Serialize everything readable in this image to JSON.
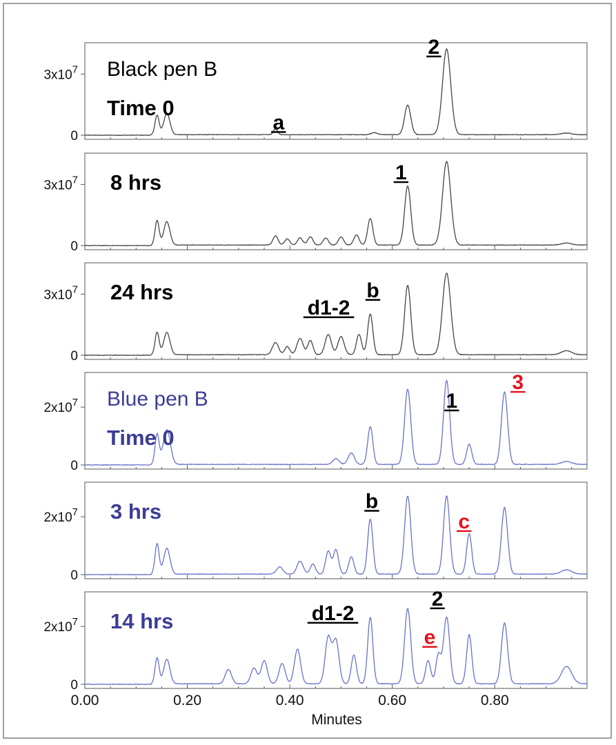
{
  "chart_data": {
    "type": "line",
    "xlabel": "Minutes",
    "xlim": [
      0,
      0.98
    ],
    "x_ticks": [
      "0.00",
      "0.20",
      "0.40",
      "0.60",
      "0.80"
    ],
    "x_tick_values": [
      0,
      0.2,
      0.4,
      0.6,
      0.8
    ],
    "panels": [
      {
        "title": "Black pen B",
        "label": "Time 0",
        "color": "#444444",
        "label_color": "#000000",
        "title_color": "#000000",
        "ylim": [
          0,
          44000000.0
        ],
        "y_ticks": [
          {
            "value": 0,
            "base": "0",
            "exp": ""
          },
          {
            "value": 30000000.0,
            "base": "3x10",
            "exp": "7"
          }
        ],
        "peaks": [
          [
            0.141,
            9500000.0,
            0.004
          ],
          [
            0.16,
            10500000.0,
            0.006
          ],
          [
            0.372,
            2800000.0,
            0.004
          ],
          [
            0.565,
            1000000.0,
            0.006
          ],
          [
            0.63,
            14500000.0,
            0.006
          ],
          [
            0.706,
            42000000.0,
            0.008
          ],
          [
            0.94,
            800000.0,
            0.01
          ]
        ],
        "annotations": [
          {
            "text": "a",
            "x": 0.378,
            "y": 0.29,
            "color": "#000000",
            "underline": true
          },
          {
            "text": "2",
            "x": 0.681,
            "y": 4.0,
            "color": "#000000",
            "underline": true
          }
        ]
      },
      {
        "title": "",
        "label": "8 hrs",
        "color": "#444444",
        "label_color": "#000000",
        "ylim": [
          0,
          44000000.0
        ],
        "y_ticks": [
          {
            "value": 0,
            "base": "0",
            "exp": ""
          },
          {
            "value": 30000000.0,
            "base": "3x10",
            "exp": "7"
          }
        ],
        "peaks": [
          [
            0.141,
            12000000.0,
            0.004
          ],
          [
            0.16,
            11500000.0,
            0.006
          ],
          [
            0.372,
            4500000.0,
            0.005
          ],
          [
            0.395,
            3000000.0,
            0.005
          ],
          [
            0.42,
            3500000.0,
            0.005
          ],
          [
            0.44,
            4000000.0,
            0.005
          ],
          [
            0.47,
            3500000.0,
            0.005
          ],
          [
            0.5,
            4000000.0,
            0.005
          ],
          [
            0.53,
            5000000.0,
            0.005
          ],
          [
            0.557,
            13000000.0,
            0.005
          ],
          [
            0.63,
            29000000.0,
            0.006
          ],
          [
            0.706,
            41000000.0,
            0.008
          ],
          [
            0.94,
            1000000.0,
            0.01
          ]
        ],
        "annotations": [
          {
            "text": "1",
            "x": 0.617,
            "y": 3.25,
            "color": "#000000",
            "underline": true
          }
        ]
      },
      {
        "title": "",
        "label": "24 hrs",
        "color": "#444444",
        "label_color": "#000000",
        "ylim": [
          0,
          44000000.0
        ],
        "y_ticks": [
          {
            "value": 0,
            "base": "0",
            "exp": ""
          },
          {
            "value": 30000000.0,
            "base": "3x10",
            "exp": "7"
          }
        ],
        "peaks": [
          [
            0.141,
            11000000.0,
            0.004
          ],
          [
            0.16,
            11000000.0,
            0.006
          ],
          [
            0.372,
            6000000.0,
            0.006
          ],
          [
            0.395,
            4000000.0,
            0.005
          ],
          [
            0.42,
            8000000.0,
            0.006
          ],
          [
            0.44,
            7000000.0,
            0.005
          ],
          [
            0.475,
            10000000.0,
            0.006
          ],
          [
            0.5,
            9000000.0,
            0.006
          ],
          [
            0.535,
            10000000.0,
            0.005
          ],
          [
            0.557,
            20000000.0,
            0.005
          ],
          [
            0.63,
            34000000.0,
            0.006
          ],
          [
            0.706,
            40000000.0,
            0.008
          ],
          [
            0.94,
            2000000.0,
            0.01
          ]
        ],
        "annotations": [
          {
            "text": "d1-2",
            "x": 0.476,
            "y": 2.0,
            "color": "#000000",
            "underline": true
          },
          {
            "text": "b",
            "x": 0.562,
            "y": 2.85,
            "color": "#000000",
            "underline": true
          }
        ]
      },
      {
        "title": "Blue pen B",
        "label": "Time 0",
        "color": "#6672c8",
        "label_color": "#3b3d96",
        "title_color": "#3b3d96",
        "ylim": [
          0,
          31000000.0
        ],
        "y_ticks": [
          {
            "value": 0,
            "base": "0",
            "exp": ""
          },
          {
            "value": 20000000.0,
            "base": "2x10",
            "exp": "7"
          }
        ],
        "peaks": [
          [
            0.141,
            10500000.0,
            0.004
          ],
          [
            0.16,
            12000000.0,
            0.007
          ],
          [
            0.49,
            2000000.0,
            0.006
          ],
          [
            0.52,
            4000000.0,
            0.006
          ],
          [
            0.557,
            13000000.0,
            0.005
          ],
          [
            0.63,
            26000000.0,
            0.006
          ],
          [
            0.706,
            29000000.0,
            0.006
          ],
          [
            0.75,
            7000000.0,
            0.005
          ],
          [
            0.819,
            25000000.0,
            0.006
          ],
          [
            0.94,
            1000000.0,
            0.01
          ]
        ],
        "annotations": [
          {
            "text": "1",
            "x": 0.716,
            "y": 1.98,
            "color": "#000000",
            "underline": true
          },
          {
            "text": "3",
            "x": 0.845,
            "y": 2.62,
            "color": "#e3141e",
            "underline": true
          }
        ]
      },
      {
        "title": "",
        "label": "3 hrs",
        "color": "#6672c8",
        "label_color": "#3b3d96",
        "ylim": [
          0,
          31000000.0
        ],
        "y_ticks": [
          {
            "value": 0,
            "base": "0",
            "exp": ""
          },
          {
            "value": 20000000.0,
            "base": "2x10",
            "exp": "7"
          }
        ],
        "peaks": [
          [
            0.141,
            10500000.0,
            0.004
          ],
          [
            0.16,
            9000000.0,
            0.006
          ],
          [
            0.38,
            2500000.0,
            0.006
          ],
          [
            0.42,
            4500000.0,
            0.006
          ],
          [
            0.445,
            3500000.0,
            0.005
          ],
          [
            0.475,
            8000000.0,
            0.005
          ],
          [
            0.49,
            8500000.0,
            0.005
          ],
          [
            0.52,
            6000000.0,
            0.005
          ],
          [
            0.557,
            19000000.0,
            0.005
          ],
          [
            0.63,
            27000000.0,
            0.006
          ],
          [
            0.706,
            27000000.0,
            0.006
          ],
          [
            0.75,
            14000000.0,
            0.005
          ],
          [
            0.819,
            23000000.0,
            0.006
          ],
          [
            0.94,
            1500000.0,
            0.01
          ]
        ],
        "annotations": [
          {
            "text": "b",
            "x": 0.56,
            "y": 2.3,
            "color": "#000000",
            "underline": true
          },
          {
            "text": "c",
            "x": 0.74,
            "y": 1.6,
            "color": "#e3141e",
            "underline": true
          }
        ]
      },
      {
        "title": "",
        "label": "14 hrs",
        "color": "#6672c8",
        "label_color": "#3b3d96",
        "ylim": [
          0,
          31000000.0
        ],
        "y_ticks": [
          {
            "value": 0,
            "base": "0",
            "exp": ""
          },
          {
            "value": 20000000.0,
            "base": "2x10",
            "exp": "7"
          }
        ],
        "peaks": [
          [
            0.141,
            9000000.0,
            0.004
          ],
          [
            0.16,
            8500000.0,
            0.006
          ],
          [
            0.28,
            5000000.0,
            0.006
          ],
          [
            0.33,
            5500000.0,
            0.006
          ],
          [
            0.35,
            8000000.0,
            0.006
          ],
          [
            0.385,
            7000000.0,
            0.006
          ],
          [
            0.415,
            12000000.0,
            0.006
          ],
          [
            0.475,
            16000000.0,
            0.006
          ],
          [
            0.49,
            15000000.0,
            0.006
          ],
          [
            0.525,
            10000000.0,
            0.005
          ],
          [
            0.557,
            23000000.0,
            0.005
          ],
          [
            0.63,
            26000000.0,
            0.006
          ],
          [
            0.67,
            8000000.0,
            0.005
          ],
          [
            0.69,
            10000000.0,
            0.005
          ],
          [
            0.706,
            23000000.0,
            0.006
          ],
          [
            0.75,
            17000000.0,
            0.005
          ],
          [
            0.819,
            21000000.0,
            0.006
          ],
          [
            0.94,
            6000000.0,
            0.01
          ]
        ],
        "annotations": [
          {
            "text": "d1-2",
            "x": 0.484,
            "y": 2.22,
            "color": "#000000",
            "underline": true
          },
          {
            "text": "2",
            "x": 0.688,
            "y": 2.72,
            "color": "#000000",
            "underline": true
          },
          {
            "text": "e",
            "x": 0.673,
            "y": 1.39,
            "color": "#e3141e",
            "underline": true
          }
        ]
      }
    ]
  }
}
